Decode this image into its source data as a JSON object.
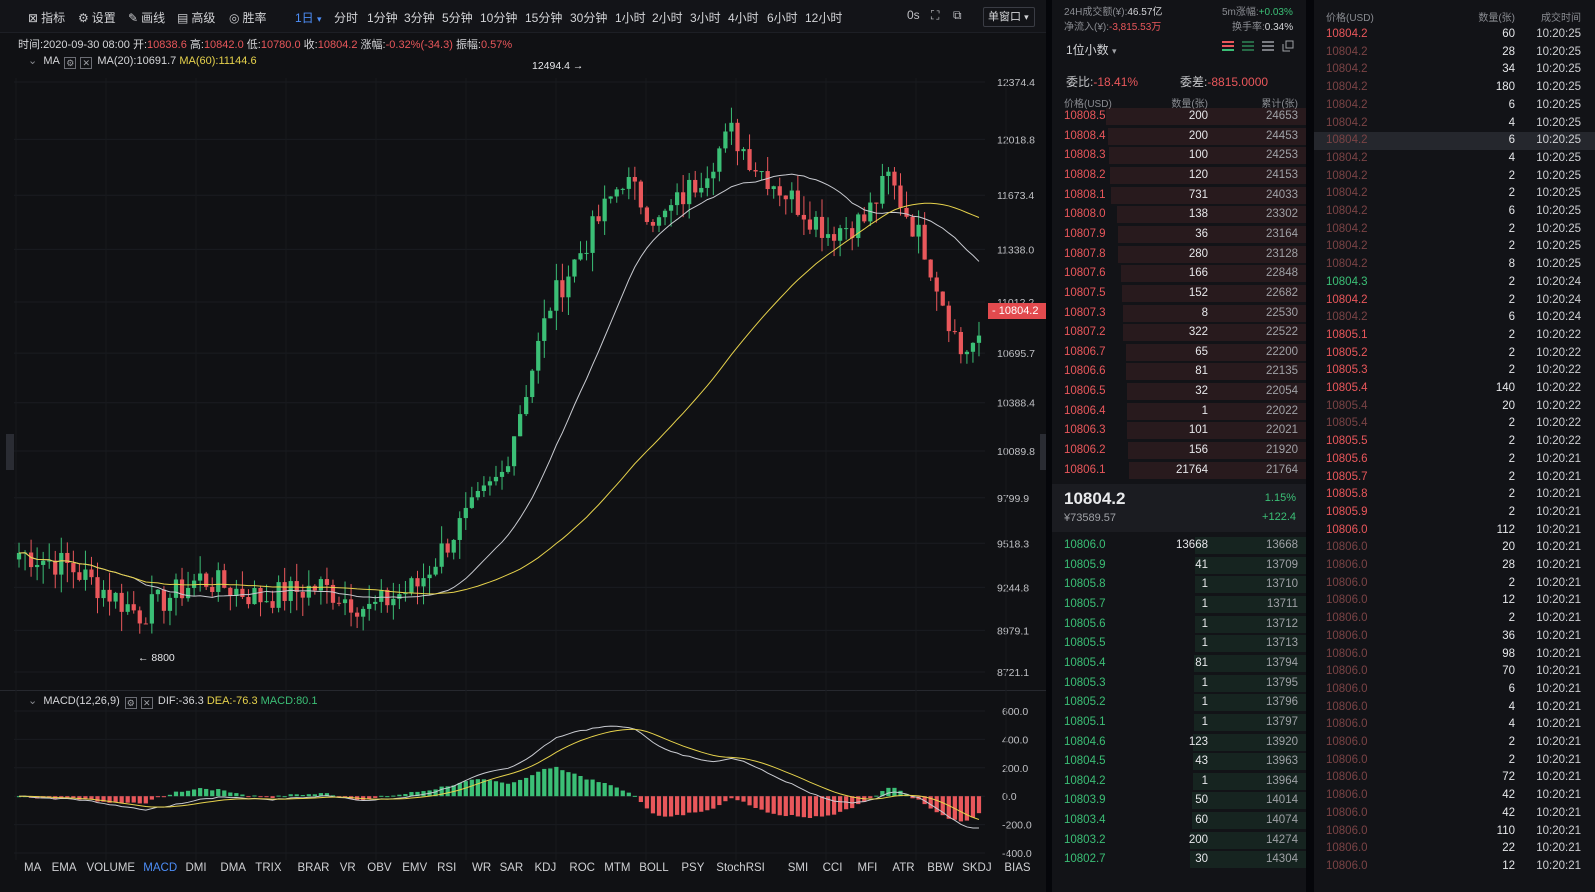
{
  "toolbar": {
    "tools": [
      {
        "icon": "indicator-icon",
        "glyph": "⊠",
        "label": "指标"
      },
      {
        "icon": "settings-gear-icon",
        "glyph": "⚙",
        "label": "设置"
      },
      {
        "icon": "pencil-draw-icon",
        "glyph": "✎",
        "label": "画线"
      },
      {
        "icon": "advanced-icon",
        "glyph": "▤",
        "label": "高级"
      },
      {
        "icon": "win-rate-icon",
        "glyph": "◎",
        "label": "胜率"
      }
    ],
    "active_timeframe": "1日",
    "timeframes": [
      "分时",
      "1分钟",
      "3分钟",
      "5分钟",
      "10分钟",
      "15分钟",
      "30分钟",
      "1小时",
      "2小时",
      "3小时",
      "4小时",
      "6小时",
      "12小时"
    ],
    "countdown": "0s",
    "window_label": "单窗口"
  },
  "infobar": {
    "time_label": "时间:",
    "time": "2020-09-30 08:00",
    "open_label": "开:",
    "open": "10838.6",
    "high_label": "高:",
    "high": "10842.0",
    "low_label": "低:",
    "low": "10780.0",
    "close_label": "收:",
    "close": "10804.2",
    "change_label": "涨幅:",
    "change": "-0.32%(-34.3)",
    "amplitude_label": "振幅:",
    "amplitude": "0.57%"
  },
  "ma_legend": {
    "name": "MA",
    "ma20": "MA(20):10691.7",
    "ma60": "MA(60):11144.6"
  },
  "macd_legend": {
    "name": "MACD(12,26,9)",
    "dif": "DIF:-36.3",
    "dea": "DEA:-76.3",
    "macd": "MACD:80.1"
  },
  "chart_data": [
    {
      "type": "candlestick",
      "title": "",
      "price_axis_ticks": [
        "12374.4",
        "12018.8",
        "11673.4",
        "11338.0",
        "11012.2",
        "10695.7",
        "10388.4",
        "10089.8",
        "9799.9",
        "9518.3",
        "9244.8",
        "8979.1",
        "8721.1"
      ],
      "high_marker": "12494.4 →",
      "low_marker": "← 8800",
      "current_price_tag": "- 10804.2",
      "colors": {
        "up": "#3bbf76",
        "down": "#e9575b",
        "ma20": "#c9cbd1",
        "ma60": "#e6d24c"
      }
    },
    {
      "type": "bar",
      "title": "",
      "axis_ticks": [
        "600.0",
        "400.0",
        "200.0",
        "0.0",
        "-200.0",
        "-400.0"
      ],
      "colors": {
        "positive": "#3bbf76",
        "negative": "#e9575b",
        "dif": "#c9cbd1",
        "dea": "#e6d24c"
      }
    }
  ],
  "indicators": [
    "MA",
    "EMA",
    "VOLUME",
    "MACD",
    "DMI",
    "DMA",
    "TRIX",
    "BRAR",
    "VR",
    "OBV",
    "EMV",
    "RSI",
    "WR",
    "SAR",
    "KDJ",
    "ROC",
    "MTM",
    "BOLL",
    "PSY",
    "StochRSI",
    "SMI",
    "CCI",
    "MFI",
    "ATR",
    "BBW",
    "SKDJ",
    "BIAS"
  ],
  "active_indicator": "MACD",
  "orderbook": {
    "vol24_label": "24H成交额(¥):",
    "vol24": "46.57亿",
    "fiveMin_label": "5m涨幅:",
    "fiveMin": "+0.03%",
    "netflow_label": "净流入(¥):",
    "netflow": "-3,815.53万",
    "turnover_label": "换手率:",
    "turnover": "0.34%",
    "decimals": "1位小数",
    "weibi_label": "委比:",
    "weibi": "-18.41%",
    "weicha_label": "委差:",
    "weicha": "-8815.0000",
    "col_price": "价格(USD)",
    "col_qty": "数量(张)",
    "col_cum": "累计(张)",
    "asks": [
      [
        "10808.5",
        "200",
        "24653"
      ],
      [
        "10808.4",
        "200",
        "24453"
      ],
      [
        "10808.3",
        "100",
        "24253"
      ],
      [
        "10808.2",
        "120",
        "24153"
      ],
      [
        "10808.1",
        "731",
        "24033"
      ],
      [
        "10808.0",
        "138",
        "23302"
      ],
      [
        "10807.9",
        "36",
        "23164"
      ],
      [
        "10807.8",
        "280",
        "23128"
      ],
      [
        "10807.6",
        "166",
        "22848"
      ],
      [
        "10807.5",
        "152",
        "22682"
      ],
      [
        "10807.3",
        "8",
        "22530"
      ],
      [
        "10807.2",
        "322",
        "22522"
      ],
      [
        "10806.7",
        "65",
        "22200"
      ],
      [
        "10806.6",
        "81",
        "22135"
      ],
      [
        "10806.5",
        "32",
        "22054"
      ],
      [
        "10806.4",
        "1",
        "22022"
      ],
      [
        "10806.3",
        "101",
        "22021"
      ],
      [
        "10806.2",
        "156",
        "21920"
      ],
      [
        "10806.1",
        "21764",
        "21764"
      ]
    ],
    "last_price": "10804.2",
    "last_cny": "¥73589.57",
    "last_pct": "1.15%",
    "last_chg": "+122.4",
    "bids": [
      [
        "10806.0",
        "13668",
        "13668"
      ],
      [
        "10805.9",
        "41",
        "13709"
      ],
      [
        "10805.8",
        "1",
        "13710"
      ],
      [
        "10805.7",
        "1",
        "13711"
      ],
      [
        "10805.6",
        "1",
        "13712"
      ],
      [
        "10805.5",
        "1",
        "13713"
      ],
      [
        "10805.4",
        "81",
        "13794"
      ],
      [
        "10805.3",
        "1",
        "13795"
      ],
      [
        "10805.2",
        "1",
        "13796"
      ],
      [
        "10805.1",
        "1",
        "13797"
      ],
      [
        "10804.6",
        "123",
        "13920"
      ],
      [
        "10804.5",
        "43",
        "13963"
      ],
      [
        "10804.2",
        "1",
        "13964"
      ],
      [
        "10803.9",
        "50",
        "14014"
      ],
      [
        "10803.4",
        "60",
        "14074"
      ],
      [
        "10803.2",
        "200",
        "14274"
      ],
      [
        "10802.7",
        "30",
        "14304"
      ]
    ]
  },
  "trades": {
    "col_price": "价格(USD)",
    "col_qty": "数量(张)",
    "col_time": "成交时间",
    "rows": [
      [
        "10804.2",
        "60",
        "10:20:25",
        "red"
      ],
      [
        "10804.2",
        "28",
        "10:20:25",
        "dim"
      ],
      [
        "10804.2",
        "34",
        "10:20:25",
        "dim"
      ],
      [
        "10804.2",
        "180",
        "10:20:25",
        "dim"
      ],
      [
        "10804.2",
        "6",
        "10:20:25",
        "dim"
      ],
      [
        "10804.2",
        "4",
        "10:20:25",
        "dim"
      ],
      [
        "10804.2",
        "6",
        "10:20:25",
        "dim"
      ],
      [
        "10804.2",
        "4",
        "10:20:25",
        "dim"
      ],
      [
        "10804.2",
        "2",
        "10:20:25",
        "dim"
      ],
      [
        "10804.2",
        "2",
        "10:20:25",
        "dim"
      ],
      [
        "10804.2",
        "6",
        "10:20:25",
        "dim"
      ],
      [
        "10804.2",
        "2",
        "10:20:25",
        "dim"
      ],
      [
        "10804.2",
        "2",
        "10:20:25",
        "dim"
      ],
      [
        "10804.2",
        "8",
        "10:20:25",
        "dim"
      ],
      [
        "10804.3",
        "2",
        "10:20:24",
        "green"
      ],
      [
        "10804.2",
        "2",
        "10:20:24",
        "red"
      ],
      [
        "10804.2",
        "6",
        "10:20:24",
        "dim"
      ],
      [
        "10805.1",
        "2",
        "10:20:22",
        "red"
      ],
      [
        "10805.2",
        "2",
        "10:20:22",
        "red"
      ],
      [
        "10805.3",
        "2",
        "10:20:22",
        "red"
      ],
      [
        "10805.4",
        "140",
        "10:20:22",
        "red"
      ],
      [
        "10805.4",
        "20",
        "10:20:22",
        "dim"
      ],
      [
        "10805.4",
        "2",
        "10:20:22",
        "dim"
      ],
      [
        "10805.5",
        "2",
        "10:20:22",
        "red"
      ],
      [
        "10805.6",
        "2",
        "10:20:21",
        "red"
      ],
      [
        "10805.7",
        "2",
        "10:20:21",
        "red"
      ],
      [
        "10805.8",
        "2",
        "10:20:21",
        "red"
      ],
      [
        "10805.9",
        "2",
        "10:20:21",
        "red"
      ],
      [
        "10806.0",
        "112",
        "10:20:21",
        "red"
      ],
      [
        "10806.0",
        "20",
        "10:20:21",
        "dim"
      ],
      [
        "10806.0",
        "28",
        "10:20:21",
        "dim"
      ],
      [
        "10806.0",
        "2",
        "10:20:21",
        "dim"
      ],
      [
        "10806.0",
        "12",
        "10:20:21",
        "dim"
      ],
      [
        "10806.0",
        "2",
        "10:20:21",
        "dim"
      ],
      [
        "10806.0",
        "36",
        "10:20:21",
        "dim"
      ],
      [
        "10806.0",
        "98",
        "10:20:21",
        "dim"
      ],
      [
        "10806.0",
        "70",
        "10:20:21",
        "dim"
      ],
      [
        "10806.0",
        "6",
        "10:20:21",
        "dim"
      ],
      [
        "10806.0",
        "4",
        "10:20:21",
        "dim"
      ],
      [
        "10806.0",
        "4",
        "10:20:21",
        "dim"
      ],
      [
        "10806.0",
        "2",
        "10:20:21",
        "dim"
      ],
      [
        "10806.0",
        "2",
        "10:20:21",
        "dim"
      ],
      [
        "10806.0",
        "72",
        "10:20:21",
        "dim"
      ],
      [
        "10806.0",
        "42",
        "10:20:21",
        "dim"
      ],
      [
        "10806.0",
        "42",
        "10:20:21",
        "dim"
      ],
      [
        "10806.0",
        "110",
        "10:20:21",
        "dim"
      ],
      [
        "10806.0",
        "22",
        "10:20:21",
        "dim"
      ],
      [
        "10806.0",
        "12",
        "10:20:21",
        "dim"
      ]
    ]
  }
}
